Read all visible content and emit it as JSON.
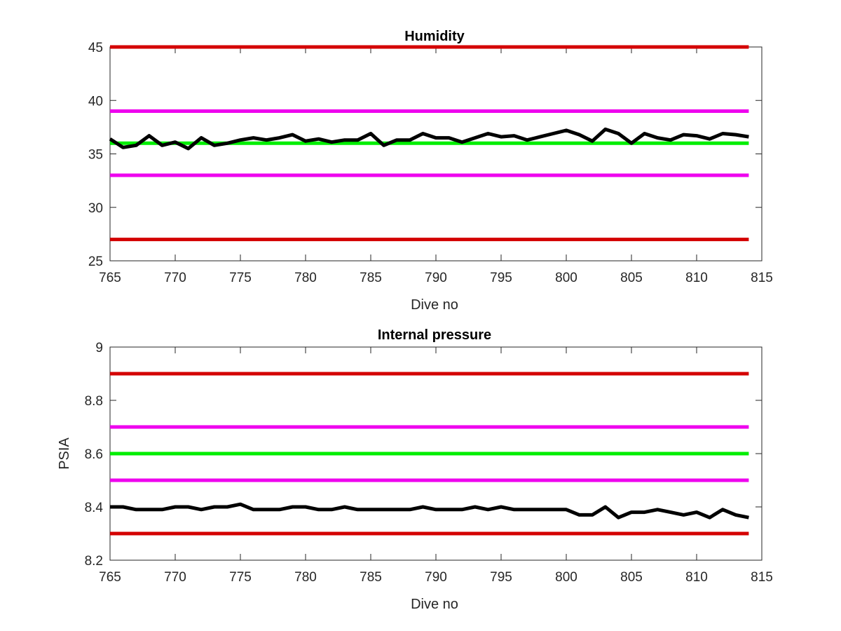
{
  "chart_data": [
    {
      "type": "line",
      "title": "Humidity",
      "xlabel": "Dive no",
      "ylabel": "",
      "xlim": [
        765,
        815
      ],
      "ylim": [
        25,
        45
      ],
      "xticks": [
        "765",
        "770",
        "775",
        "780",
        "785",
        "790",
        "795",
        "800",
        "805",
        "810",
        "815"
      ],
      "yticks": [
        "25",
        "30",
        "35",
        "40",
        "45"
      ],
      "grid": false,
      "thresholds": [
        {
          "value": 45,
          "color": "#d40000"
        },
        {
          "value": 39,
          "color": "#ee00ee"
        },
        {
          "value": 36,
          "color": "#00ee00"
        },
        {
          "value": 33,
          "color": "#ee00ee"
        },
        {
          "value": 27,
          "color": "#d40000"
        }
      ],
      "series": [
        {
          "color": "#000000",
          "x": [
            765,
            766,
            767,
            768,
            769,
            770,
            771,
            772,
            773,
            774,
            775,
            776,
            777,
            778,
            779,
            780,
            781,
            782,
            783,
            784,
            785,
            786,
            787,
            788,
            789,
            790,
            791,
            792,
            793,
            794,
            795,
            796,
            797,
            798,
            799,
            800,
            801,
            802,
            803,
            804,
            805,
            806,
            807,
            808,
            809,
            810,
            811,
            812,
            813,
            814
          ],
          "values": [
            36.4,
            35.6,
            35.8,
            36.7,
            35.8,
            36.1,
            35.5,
            36.5,
            35.8,
            36.0,
            36.3,
            36.5,
            36.3,
            36.5,
            36.8,
            36.2,
            36.4,
            36.1,
            36.3,
            36.3,
            36.9,
            35.8,
            36.3,
            36.3,
            36.9,
            36.5,
            36.5,
            36.1,
            36.5,
            36.9,
            36.6,
            36.7,
            36.3,
            36.6,
            36.9,
            37.2,
            36.8,
            36.2,
            37.3,
            36.9,
            36.0,
            36.9,
            36.5,
            36.3,
            36.8,
            36.7,
            36.4,
            36.9,
            36.8,
            36.6
          ]
        }
      ]
    },
    {
      "type": "line",
      "title": "Internal pressure",
      "xlabel": "Dive no",
      "ylabel": "PSIA",
      "xlim": [
        765,
        815
      ],
      "ylim": [
        8.2,
        9.0
      ],
      "xticks": [
        "765",
        "770",
        "775",
        "780",
        "785",
        "790",
        "795",
        "800",
        "805",
        "810",
        "815"
      ],
      "yticks": [
        "8.2",
        "8.4",
        "8.6",
        "8.8",
        "9"
      ],
      "grid": false,
      "thresholds": [
        {
          "value": 8.9,
          "color": "#d40000"
        },
        {
          "value": 8.7,
          "color": "#ee00ee"
        },
        {
          "value": 8.6,
          "color": "#00ee00"
        },
        {
          "value": 8.5,
          "color": "#ee00ee"
        },
        {
          "value": 8.3,
          "color": "#d40000"
        }
      ],
      "series": [
        {
          "color": "#000000",
          "x": [
            765,
            766,
            767,
            768,
            769,
            770,
            771,
            772,
            773,
            774,
            775,
            776,
            777,
            778,
            779,
            780,
            781,
            782,
            783,
            784,
            785,
            786,
            787,
            788,
            789,
            790,
            791,
            792,
            793,
            794,
            795,
            796,
            797,
            798,
            799,
            800,
            801,
            802,
            803,
            804,
            805,
            806,
            807,
            808,
            809,
            810,
            811,
            812,
            813,
            814
          ],
          "values": [
            8.4,
            8.4,
            8.39,
            8.39,
            8.39,
            8.4,
            8.4,
            8.39,
            8.4,
            8.4,
            8.41,
            8.39,
            8.39,
            8.39,
            8.4,
            8.4,
            8.39,
            8.39,
            8.4,
            8.39,
            8.39,
            8.39,
            8.39,
            8.39,
            8.4,
            8.39,
            8.39,
            8.39,
            8.4,
            8.39,
            8.4,
            8.39,
            8.39,
            8.39,
            8.39,
            8.39,
            8.37,
            8.37,
            8.4,
            8.36,
            8.38,
            8.38,
            8.39,
            8.38,
            8.37,
            8.38,
            8.36,
            8.39,
            8.37,
            8.36
          ]
        }
      ]
    }
  ]
}
